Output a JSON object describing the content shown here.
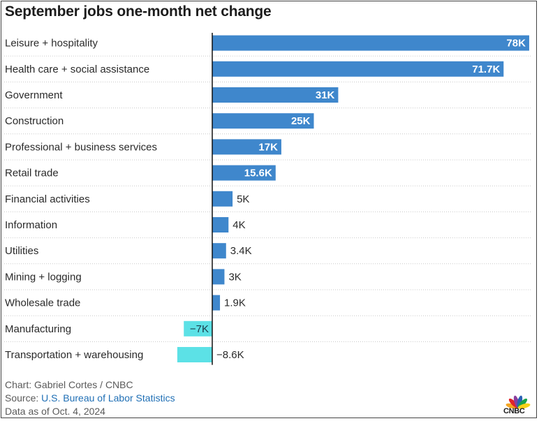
{
  "chart_data": {
    "type": "bar",
    "orientation": "horizontal",
    "title": "September jobs one-month net change",
    "categories": [
      "Leisure + hospitality",
      "Health care + social assistance",
      "Government",
      "Construction",
      "Professional + business services",
      "Retail trade",
      "Financial activities",
      "Information",
      "Utilities",
      "Mining + logging",
      "Wholesale trade",
      "Manufacturing",
      "Transportation + warehousing"
    ],
    "values": [
      78,
      71.7,
      31,
      25,
      17,
      15.6,
      5,
      4,
      3.4,
      3,
      1.9,
      -7,
      -8.6
    ],
    "value_labels": [
      "78K",
      "71.7K",
      "31K",
      "25K",
      "17K",
      "15.6K",
      "5K",
      "4K",
      "3.4K",
      "3K",
      "1.9K",
      "−7K",
      "−8.6K"
    ],
    "unit": "thousands of jobs",
    "positive_color": "#3f87cc",
    "negative_color": "#5ce1e6",
    "grid": "dotted row separators",
    "legend": "none"
  },
  "footer": {
    "credit": "Chart: Gabriel Cortes / CNBC",
    "source_prefix": "Source: ",
    "source_link": "U.S. Bureau of Labor Statistics",
    "date_note": "Data as of Oct. 4, 2024"
  },
  "logo": {
    "name": "cnbc-peacock-icon",
    "text": "CNBC",
    "colors": [
      "#f5a623",
      "#e0242a",
      "#8a3f9e",
      "#2a62b5",
      "#1aa24a",
      "#f7d117"
    ]
  }
}
